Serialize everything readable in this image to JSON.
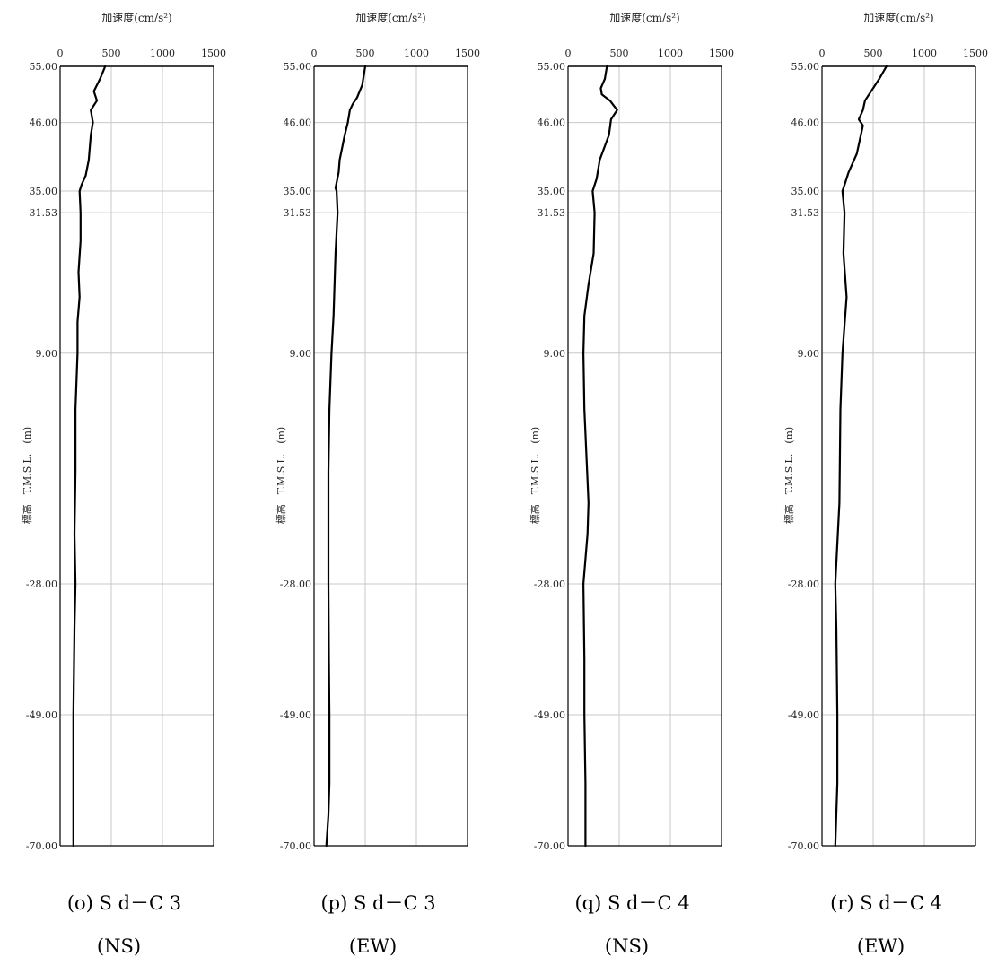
{
  "chart_data": [
    {
      "type": "line",
      "xlabel": "加速度(cm/s²)",
      "ylabel": "標高　T.M.S.L.　(m)",
      "xlim": [
        0,
        1500
      ],
      "xticks": [
        0,
        500,
        1000,
        1500
      ],
      "ylim": [
        -70,
        55
      ],
      "yticks": [
        55,
        46,
        35,
        31.53,
        9,
        -28,
        -49,
        -70
      ],
      "ytick_labels": [
        "55.00",
        "46.00",
        "35.00",
        "31.53",
        "9.00",
        "-28.00",
        "-49.00",
        "-70.00"
      ],
      "grid": true,
      "caption_line1": "(o) S d－C 3",
      "caption_line2": "(NS)",
      "series": [
        {
          "y": [
            55,
            53,
            51,
            49.5,
            48,
            46,
            44,
            40,
            37.5,
            36,
            35,
            31.53,
            27,
            22,
            18,
            14,
            9,
            0,
            -10,
            -20,
            -28,
            -35,
            -49,
            -60,
            -70
          ],
          "x": [
            440,
            390,
            330,
            360,
            300,
            320,
            300,
            280,
            250,
            210,
            190,
            200,
            200,
            180,
            190,
            170,
            170,
            150,
            150,
            140,
            150,
            140,
            130,
            130,
            130
          ]
        }
      ]
    },
    {
      "type": "line",
      "xlabel": "加速度(cm/s²)",
      "ylabel": "標高　T.M.S.L.　(m)",
      "xlim": [
        0,
        1500
      ],
      "xticks": [
        0,
        500,
        1000,
        1500
      ],
      "ylim": [
        -70,
        55
      ],
      "yticks": [
        55,
        46,
        35,
        31.53,
        9,
        -28,
        -49,
        -70
      ],
      "ytick_labels": [
        "55.00",
        "46.00",
        "35.00",
        "31.53",
        "9.00",
        "-28.00",
        "-49.00",
        "-70.00"
      ],
      "grid": true,
      "caption_line1": "(p) S d－C 3",
      "caption_line2": "(EW)",
      "series": [
        {
          "y": [
            55,
            52,
            50,
            49,
            48,
            46,
            44,
            40,
            38,
            35.5,
            35,
            31.53,
            25,
            15,
            9,
            0,
            -10,
            -20,
            -28,
            -40,
            -49,
            -60,
            -65,
            -70
          ],
          "x": [
            500,
            470,
            420,
            380,
            350,
            330,
            300,
            250,
            240,
            210,
            220,
            230,
            210,
            190,
            170,
            150,
            140,
            140,
            140,
            145,
            150,
            150,
            140,
            120
          ]
        }
      ]
    },
    {
      "type": "line",
      "xlabel": "加速度(cm/s²)",
      "ylabel": "標高　T.M.S.L.　(m)",
      "xlim": [
        0,
        1500
      ],
      "xticks": [
        0,
        500,
        1000,
        1500
      ],
      "ylim": [
        -70,
        55
      ],
      "yticks": [
        55,
        46,
        35,
        31.53,
        9,
        -28,
        -49,
        -70
      ],
      "ytick_labels": [
        "55.00",
        "46.00",
        "35.00",
        "31.53",
        "9.00",
        "-28.00",
        "-49.00",
        "-70.00"
      ],
      "grid": true,
      "caption_line1": "(q) S d－C 4",
      "caption_line2": "(NS)",
      "series": [
        {
          "y": [
            55,
            53,
            51.5,
            50.5,
            49.5,
            48,
            46.5,
            44,
            40,
            37,
            35,
            31.53,
            25,
            20,
            15,
            9,
            0,
            -15,
            -20,
            -28,
            -40,
            -49,
            -60,
            -70
          ],
          "x": [
            380,
            360,
            320,
            330,
            410,
            480,
            420,
            400,
            310,
            280,
            240,
            260,
            250,
            200,
            160,
            150,
            160,
            200,
            190,
            150,
            160,
            160,
            170,
            170
          ]
        }
      ]
    },
    {
      "type": "line",
      "xlabel": "加速度(cm/s²)",
      "ylabel": "標高　T.M.S.L.　(m)",
      "xlim": [
        0,
        1500
      ],
      "xticks": [
        0,
        500,
        1000,
        1500
      ],
      "ylim": [
        -70,
        55
      ],
      "yticks": [
        55,
        46,
        35,
        31.53,
        9,
        -28,
        -49,
        -70
      ],
      "ytick_labels": [
        "55.00",
        "46.00",
        "35.00",
        "31.53",
        "9.00",
        "-28.00",
        "-49.00",
        "-70.00"
      ],
      "grid": true,
      "caption_line1": "(r) S d－C 4",
      "caption_line2": "(EW)",
      "series": [
        {
          "y": [
            55,
            53,
            51,
            49.5,
            48,
            46.5,
            45.5,
            44,
            41,
            38,
            36,
            35,
            31.53,
            25,
            18,
            9,
            0,
            -15,
            -28,
            -35,
            -49,
            -60,
            -70
          ],
          "x": [
            630,
            560,
            480,
            420,
            400,
            360,
            400,
            380,
            340,
            260,
            220,
            200,
            220,
            210,
            240,
            200,
            180,
            170,
            130,
            140,
            150,
            150,
            130
          ]
        }
      ]
    }
  ]
}
